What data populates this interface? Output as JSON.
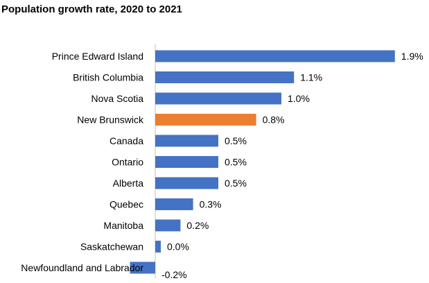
{
  "chart_data": {
    "type": "bar",
    "orientation": "horizontal",
    "title": "Population growth rate, 2020 to 2021",
    "xlabel": "",
    "ylabel": "",
    "categories": [
      "Prince Edward Island",
      "British Columbia",
      "Nova Scotia",
      "New Brunswick",
      "Canada",
      "Ontario",
      "Alberta",
      "Quebec",
      "Manitoba",
      "Saskatchewan",
      "Newfoundland and Labrador"
    ],
    "values": [
      1.9,
      1.1,
      1.0,
      0.8,
      0.5,
      0.5,
      0.5,
      0.3,
      0.2,
      0.0,
      -0.2
    ],
    "value_labels": [
      "1.9%",
      "1.1%",
      "1.0%",
      "0.8%",
      "0.5%",
      "0.5%",
      "0.5%",
      "0.3%",
      "0.2%",
      "0.0%",
      "-0.2%"
    ],
    "highlight_category": "New Brunswick",
    "xlim": [
      -0.2,
      1.9
    ],
    "grid": false,
    "legend": "none",
    "colors": {
      "default_bar": "#4472C4",
      "highlight_bar": "#ED7D31",
      "axis": "#BFBFBF",
      "text": "#000000"
    }
  }
}
